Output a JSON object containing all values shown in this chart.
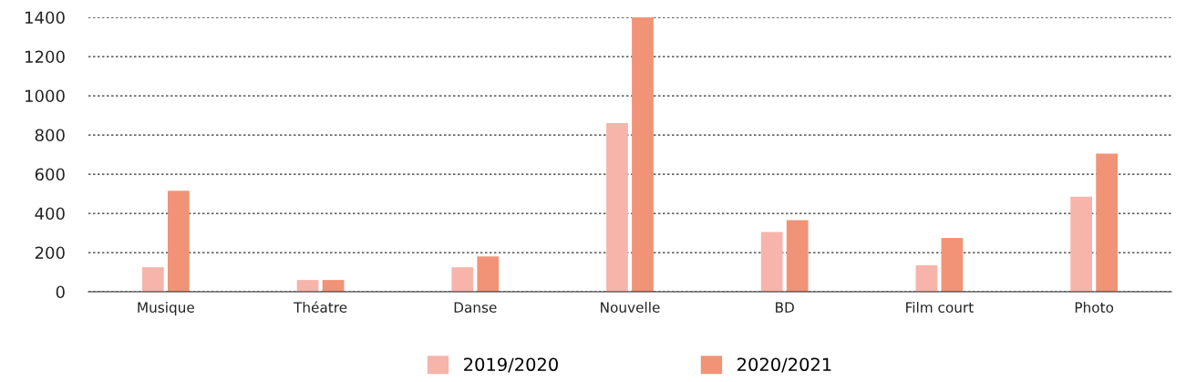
{
  "chart_data": {
    "type": "bar",
    "categories": [
      "Musique",
      "Théatre",
      "Danse",
      "Nouvelle",
      "BD",
      "Film court",
      "Photo"
    ],
    "series": [
      {
        "name": "2019/2020",
        "color": "#f7b4ab",
        "values": [
          125,
          60,
          125,
          860,
          305,
          135,
          485
        ]
      },
      {
        "name": "2020/2021",
        "color": "#f19377",
        "values": [
          515,
          60,
          180,
          1400,
          365,
          275,
          705
        ]
      }
    ],
    "ylim": [
      0,
      1400
    ],
    "yticks": [
      0,
      200,
      400,
      600,
      800,
      1000,
      1200,
      1400
    ],
    "grid": "y",
    "legend": "bottom"
  }
}
